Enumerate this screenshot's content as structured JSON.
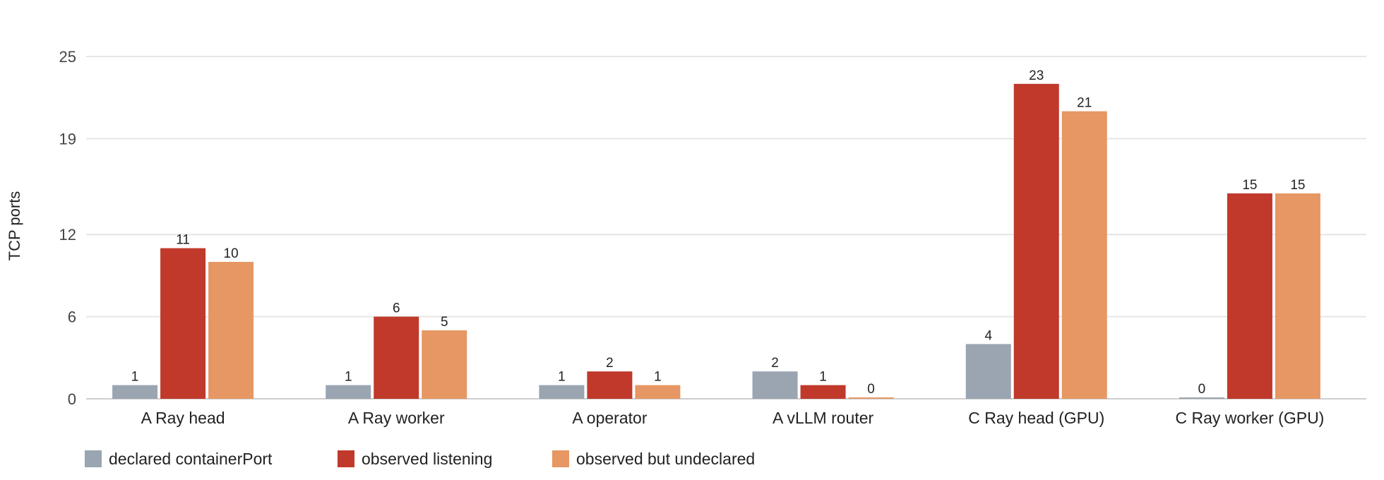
{
  "chart_data": {
    "type": "bar",
    "title": "",
    "xlabel": "",
    "ylabel": "TCP ports",
    "ylim": [
      0,
      25
    ],
    "yticks": [
      0,
      6,
      12,
      19,
      25
    ],
    "grid": true,
    "legend_position": "bottom-left",
    "categories": [
      "A Ray head",
      "A Ray worker",
      "A operator",
      "A vLLM router",
      "C Ray head (GPU)",
      "C Ray worker (GPU)"
    ],
    "series": [
      {
        "name": "declared containerPort",
        "color": "#9aa5b1",
        "values": [
          1,
          1,
          1,
          2,
          4,
          0
        ]
      },
      {
        "name": "observed listening",
        "color": "#c0392b",
        "values": [
          11,
          6,
          2,
          1,
          23,
          15
        ]
      },
      {
        "name": "observed but undeclared",
        "color": "#e69763",
        "values": [
          10,
          5,
          1,
          0,
          21,
          15
        ]
      }
    ]
  }
}
